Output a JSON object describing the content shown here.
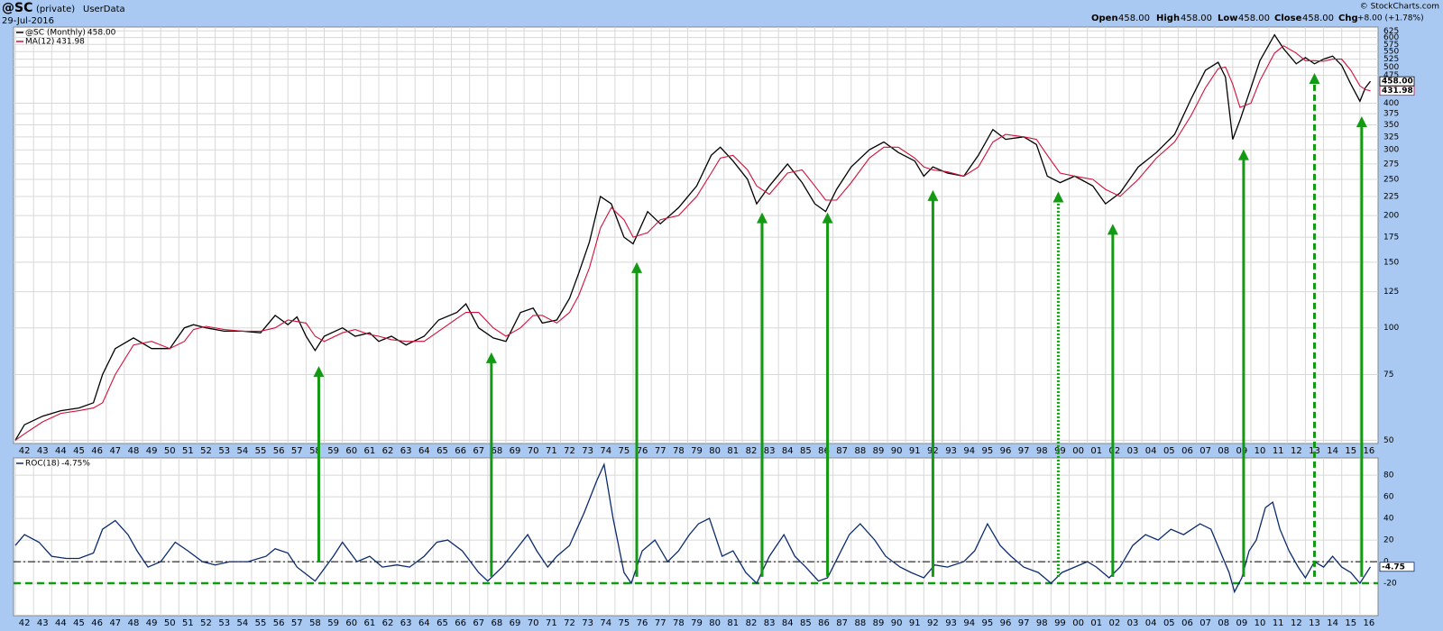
{
  "header": {
    "symbol": "@SC",
    "private": "(private)",
    "source": "UserData",
    "date": "29-Jul-2016",
    "open_label": "Open",
    "open": "458.00",
    "high_label": "High",
    "high": "458.00",
    "low_label": "Low",
    "low": "458.00",
    "close_label": "Close",
    "close": "458.00",
    "chg_label": "Chg",
    "chg": "+8.00 (+1.78%)",
    "copyright": "© StockCharts.com"
  },
  "chart_data": [
    {
      "type": "line",
      "log_scale": true,
      "grid": true,
      "x": [
        1942.0,
        1942.5,
        1943.5,
        1944.5,
        1945.5,
        1946.3,
        1946.8,
        1947.5,
        1948.5,
        1949.5,
        1950.5,
        1951.3,
        1951.8,
        1952.5,
        1953.5,
        1954.5,
        1955.5,
        1956.3,
        1957.0,
        1957.5,
        1958.0,
        1958.5,
        1959.0,
        1960.0,
        1960.7,
        1961.5,
        1962.0,
        1962.7,
        1963.5,
        1964.5,
        1965.3,
        1966.3,
        1966.8,
        1967.5,
        1968.3,
        1969.0,
        1969.8,
        1970.5,
        1971.0,
        1971.8,
        1972.5,
        1973.0,
        1973.6,
        1974.2,
        1974.8,
        1975.5,
        1976.0,
        1976.8,
        1977.5,
        1978.5,
        1979.5,
        1980.3,
        1980.8,
        1981.5,
        1982.3,
        1982.8,
        1983.5,
        1984.5,
        1985.3,
        1986.0,
        1986.6,
        1987.2,
        1988.0,
        1989.0,
        1989.8,
        1990.6,
        1991.5,
        1992.0,
        1992.5,
        1993.3,
        1994.2,
        1995.0,
        1995.8,
        1996.5,
        1997.5,
        1998.2,
        1998.8,
        1999.5,
        2000.3,
        2001.3,
        2002.0,
        2002.8,
        2003.8,
        2004.8,
        2005.8,
        2006.7,
        2007.5,
        2008.2,
        2008.6,
        2009.0,
        2009.4,
        2010.0,
        2010.5,
        2011.3,
        2011.8,
        2012.5,
        2013.0,
        2013.5,
        2014.0,
        2014.5,
        2015.0,
        2015.5,
        2016.0,
        2016.3,
        2016.58
      ],
      "series": [
        {
          "name": "@SC (Monthly)",
          "legend_value": "458.00",
          "last_label": "458.00",
          "color": "#000000",
          "values": [
            50,
            55,
            58,
            60,
            61,
            63,
            75,
            88,
            94,
            88,
            88,
            100,
            102,
            100,
            98,
            98,
            97,
            108,
            102,
            107,
            95,
            87,
            95,
            100,
            95,
            97,
            92,
            95,
            90,
            95,
            105,
            110,
            116,
            100,
            94,
            92,
            110,
            113,
            103,
            105,
            120,
            140,
            170,
            225,
            215,
            175,
            168,
            205,
            190,
            210,
            240,
            290,
            305,
            280,
            250,
            215,
            240,
            275,
            245,
            215,
            205,
            235,
            270,
            300,
            315,
            295,
            280,
            255,
            270,
            260,
            255,
            290,
            340,
            320,
            325,
            310,
            255,
            245,
            255,
            240,
            215,
            230,
            270,
            295,
            330,
            410,
            490,
            515,
            470,
            320,
            360,
            440,
            520,
            610,
            560,
            510,
            530,
            510,
            525,
            535,
            505,
            450,
            405,
            440,
            458
          ]
        },
        {
          "name": "MA(12)",
          "legend_value": "431.98",
          "last_label": "431.98",
          "color": "#d0103a",
          "values": [
            50,
            52,
            56,
            59,
            60,
            61,
            63,
            75,
            90,
            92,
            88,
            92,
            99,
            101,
            99,
            98,
            98,
            100,
            105,
            104,
            103,
            95,
            92,
            97,
            99,
            96,
            95,
            93,
            92,
            92,
            98,
            106,
            110,
            110,
            100,
            95,
            100,
            108,
            108,
            103,
            110,
            122,
            145,
            185,
            210,
            195,
            175,
            180,
            195,
            200,
            225,
            260,
            285,
            290,
            265,
            240,
            228,
            260,
            265,
            240,
            220,
            220,
            245,
            285,
            305,
            305,
            285,
            270,
            265,
            262,
            255,
            270,
            315,
            330,
            325,
            320,
            290,
            260,
            255,
            250,
            235,
            225,
            250,
            285,
            315,
            370,
            440,
            495,
            500,
            450,
            390,
            400,
            460,
            545,
            570,
            545,
            520,
            520,
            518,
            525,
            525,
            490,
            445,
            435,
            431.98
          ]
        }
      ],
      "xlim": [
        1941.9,
        2017.0
      ],
      "xticks": [
        {
          "value": 1942,
          "label": "42"
        },
        {
          "value": 1943,
          "label": "43"
        },
        {
          "value": 1944,
          "label": "44"
        },
        {
          "value": 1945,
          "label": "45"
        },
        {
          "value": 1946,
          "label": "46"
        },
        {
          "value": 1947,
          "label": "47"
        },
        {
          "value": 1948,
          "label": "48"
        },
        {
          "value": 1949,
          "label": "49"
        },
        {
          "value": 1950,
          "label": "50"
        },
        {
          "value": 1951,
          "label": "51"
        },
        {
          "value": 1952,
          "label": "52"
        },
        {
          "value": 1953,
          "label": "53"
        },
        {
          "value": 1954,
          "label": "54"
        },
        {
          "value": 1955,
          "label": "55"
        },
        {
          "value": 1956,
          "label": "56"
        },
        {
          "value": 1957,
          "label": "57"
        },
        {
          "value": 1958,
          "label": "58"
        },
        {
          "value": 1959,
          "label": "59"
        },
        {
          "value": 1960,
          "label": "60"
        },
        {
          "value": 1961,
          "label": "61"
        },
        {
          "value": 1962,
          "label": "62"
        },
        {
          "value": 1963,
          "label": "63"
        },
        {
          "value": 1964,
          "label": "64"
        },
        {
          "value": 1965,
          "label": "65"
        },
        {
          "value": 1966,
          "label": "66"
        },
        {
          "value": 1967,
          "label": "67"
        },
        {
          "value": 1968,
          "label": "68"
        },
        {
          "value": 1969,
          "label": "69"
        },
        {
          "value": 1970,
          "label": "70"
        },
        {
          "value": 1971,
          "label": "71"
        },
        {
          "value": 1972,
          "label": "72"
        },
        {
          "value": 1973,
          "label": "73"
        },
        {
          "value": 1974,
          "label": "74"
        },
        {
          "value": 1975,
          "label": "75"
        },
        {
          "value": 1976,
          "label": "76"
        },
        {
          "value": 1977,
          "label": "77"
        },
        {
          "value": 1978,
          "label": "78"
        },
        {
          "value": 1979,
          "label": "79"
        },
        {
          "value": 1980,
          "label": "80"
        },
        {
          "value": 1981,
          "label": "81"
        },
        {
          "value": 1982,
          "label": "82"
        },
        {
          "value": 1983,
          "label": "83"
        },
        {
          "value": 1984,
          "label": "84"
        },
        {
          "value": 1985,
          "label": "85"
        },
        {
          "value": 1986,
          "label": "86"
        },
        {
          "value": 1987,
          "label": "87"
        },
        {
          "value": 1988,
          "label": "88"
        },
        {
          "value": 1989,
          "label": "89"
        },
        {
          "value": 1990,
          "label": "90"
        },
        {
          "value": 1991,
          "label": "91"
        },
        {
          "value": 1992,
          "label": "92"
        },
        {
          "value": 1993,
          "label": "93"
        },
        {
          "value": 1994,
          "label": "94"
        },
        {
          "value": 1995,
          "label": "95"
        },
        {
          "value": 1996,
          "label": "96"
        },
        {
          "value": 1997,
          "label": "97"
        },
        {
          "value": 1998,
          "label": "98"
        },
        {
          "value": 1999,
          "label": "99"
        },
        {
          "value": 2000,
          "label": "00"
        },
        {
          "value": 2001,
          "label": "01"
        },
        {
          "value": 2002,
          "label": "02"
        },
        {
          "value": 2003,
          "label": "03"
        },
        {
          "value": 2004,
          "label": "04"
        },
        {
          "value": 2005,
          "label": "05"
        },
        {
          "value": 2006,
          "label": "06"
        },
        {
          "value": 2007,
          "label": "07"
        },
        {
          "value": 2008,
          "label": "08"
        },
        {
          "value": 2009,
          "label": "09"
        },
        {
          "value": 2010,
          "label": "10"
        },
        {
          "value": 2011,
          "label": "11"
        },
        {
          "value": 2012,
          "label": "12"
        },
        {
          "value": 2013,
          "label": "13"
        },
        {
          "value": 2014,
          "label": "14"
        },
        {
          "value": 2015,
          "label": "15"
        },
        {
          "value": 2016,
          "label": "16"
        }
      ],
      "ylim": [
        49,
        640
      ],
      "yticks": [
        50,
        75,
        100,
        125,
        150,
        175,
        200,
        225,
        250,
        275,
        300,
        325,
        350,
        375,
        400,
        475,
        500,
        525,
        550,
        575,
        600,
        625
      ],
      "arrow_color": "#139a13",
      "arrows": [
        {
          "x": 1958.7,
          "top": 79,
          "bottom": 0,
          "style": "solid"
        },
        {
          "x": 1968.2,
          "top": 86,
          "bottom": -14,
          "style": "solid"
        },
        {
          "x": 1976.2,
          "top": 150,
          "bottom": -14,
          "style": "solid"
        },
        {
          "x": 1983.1,
          "top": 204,
          "bottom": -14,
          "style": "solid"
        },
        {
          "x": 1986.7,
          "top": 204,
          "bottom": -14,
          "style": "solid"
        },
        {
          "x": 1992.5,
          "top": 234,
          "bottom": -14,
          "style": "solid"
        },
        {
          "x": 1999.4,
          "top": 232,
          "bottom": -14,
          "style": "dotted"
        },
        {
          "x": 2002.4,
          "top": 190,
          "bottom": -14,
          "style": "solid"
        },
        {
          "x": 2009.6,
          "top": 301,
          "bottom": -14,
          "style": "solid"
        },
        {
          "x": 2013.5,
          "top": 482,
          "bottom": -14,
          "style": "dashed"
        },
        {
          "x": 2016.1,
          "top": 369,
          "bottom": -14,
          "style": "solid"
        }
      ]
    },
    {
      "type": "line",
      "log_scale": false,
      "grid": true,
      "x": [
        1942.0,
        1942.5,
        1943.3,
        1944.0,
        1944.8,
        1945.5,
        1946.3,
        1946.8,
        1947.5,
        1948.2,
        1948.7,
        1949.3,
        1950.0,
        1950.8,
        1951.5,
        1952.3,
        1953.0,
        1953.8,
        1954.8,
        1955.8,
        1956.3,
        1957.0,
        1957.5,
        1958.5,
        1959.5,
        1960.0,
        1960.8,
        1961.5,
        1962.2,
        1963.0,
        1963.7,
        1964.5,
        1965.2,
        1965.8,
        1966.6,
        1967.5,
        1968.0,
        1968.8,
        1969.5,
        1970.2,
        1970.7,
        1971.3,
        1971.8,
        1972.5,
        1973.3,
        1974.0,
        1974.4,
        1974.9,
        1975.5,
        1975.9,
        1976.5,
        1977.2,
        1977.9,
        1978.5,
        1979.1,
        1979.6,
        1980.2,
        1980.9,
        1981.5,
        1982.2,
        1982.8,
        1983.5,
        1984.3,
        1984.9,
        1985.5,
        1986.2,
        1986.7,
        1987.3,
        1987.9,
        1988.5,
        1989.3,
        1989.9,
        1990.7,
        1991.3,
        1992.0,
        1992.6,
        1993.3,
        1994.2,
        1994.8,
        1995.5,
        1996.2,
        1996.8,
        1997.5,
        1998.3,
        1999.0,
        1999.6,
        2000.3,
        2001.0,
        2001.5,
        2002.2,
        2002.8,
        2003.5,
        2004.2,
        2004.9,
        2005.6,
        2006.3,
        2007.2,
        2007.8,
        2008.3,
        2008.8,
        2009.1,
        2009.5,
        2009.9,
        2010.3,
        2010.8,
        2011.2,
        2011.6,
        2012.1,
        2012.6,
        2013.0,
        2013.5,
        2014.0,
        2014.5,
        2015.0,
        2015.5,
        2016.0,
        2016.58
      ],
      "series": [
        {
          "name": "ROC(18)",
          "legend_value": "-4.75%",
          "last_label": "-4.75",
          "color": "#0b2a6e",
          "values": [
            15,
            25,
            18,
            5,
            3,
            3,
            8,
            30,
            38,
            25,
            10,
            -5,
            0,
            18,
            10,
            0,
            -3,
            0,
            0,
            5,
            12,
            8,
            -5,
            -18,
            5,
            18,
            0,
            5,
            -5,
            -3,
            -5,
            5,
            18,
            20,
            10,
            -10,
            -18,
            -5,
            10,
            25,
            10,
            -5,
            5,
            15,
            45,
            75,
            90,
            40,
            -10,
            -20,
            10,
            20,
            0,
            10,
            25,
            35,
            40,
            5,
            10,
            -10,
            -20,
            5,
            25,
            5,
            -5,
            -18,
            -15,
            5,
            25,
            35,
            20,
            5,
            -5,
            -10,
            -15,
            -3,
            -5,
            0,
            10,
            35,
            15,
            5,
            -5,
            -10,
            -20,
            -10,
            -5,
            0,
            -5,
            -15,
            -5,
            15,
            25,
            20,
            30,
            25,
            35,
            30,
            10,
            -10,
            -28,
            -15,
            10,
            20,
            50,
            55,
            30,
            10,
            -5,
            -15,
            0,
            -5,
            5,
            -5,
            -10,
            -20,
            -4.75
          ]
        }
      ],
      "xlim": [
        1941.9,
        2017.0
      ],
      "ylim": [
        -50,
        96
      ],
      "yticks": [
        -20,
        0,
        20,
        40,
        60,
        80
      ],
      "reference_lines": [
        {
          "value": 0,
          "style": "dashdot",
          "color": "#000000"
        },
        {
          "value": -20,
          "style": "dashed",
          "color": "#139a13"
        }
      ]
    }
  ]
}
